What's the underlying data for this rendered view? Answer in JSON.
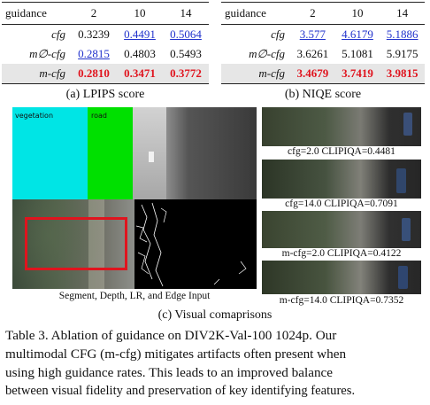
{
  "lpips_table": {
    "header": [
      "guidance",
      "2",
      "10",
      "14"
    ],
    "rows": [
      {
        "label": "cfg",
        "values": [
          "0.3239",
          "0.4491",
          "0.5064"
        ]
      },
      {
        "label": "m∅-cfg",
        "values": [
          "0.2815",
          "0.4803",
          "0.5493"
        ]
      },
      {
        "label": "m-cfg",
        "values": [
          "0.2810",
          "0.3471",
          "0.3772"
        ]
      }
    ],
    "caption": "(a) LPIPS score"
  },
  "niqe_table": {
    "header": [
      "guidance",
      "2",
      "10",
      "14"
    ],
    "rows": [
      {
        "label": "cfg",
        "values": [
          "3.577",
          "4.6179",
          "5.1886"
        ]
      },
      {
        "label": "m∅-cfg",
        "values": [
          "3.6261",
          "5.1081",
          "5.9175"
        ]
      },
      {
        "label": "m-cfg",
        "values": [
          "3.4679",
          "3.7419",
          "3.9815"
        ]
      }
    ],
    "caption": "(b) NIQE score"
  },
  "visual": {
    "seg_labels": {
      "vegetation": "vegetation",
      "road": "road"
    },
    "inputs_caption": "Segment, Depth, LR, and Edge Input",
    "samples": [
      "cfg=2.0 CLIPIQA=0.4481",
      "cfg=14.0 CLIPIQA=0.7091",
      "m-cfg=2.0 CLIPIQA=0.4122",
      "m-cfg=14.0 CLIPIQA=0.7352"
    ],
    "caption": "(c) Visual comaprisons"
  },
  "paragraph": {
    "lines": [
      "Table 3.  Ablation of guidance on DIV2K-Val-100 1024p.  Our",
      "multimodal CFG (m-cfg) mitigates artifacts often present when",
      "using high guidance rates.  This leads to an improved balance",
      "between visual fidelity and preservation of key identifying features."
    ]
  },
  "colors": {
    "best": "#e0141e",
    "second": "#2233cc",
    "vegetation": "#00e5e5",
    "road": "#00e000"
  }
}
